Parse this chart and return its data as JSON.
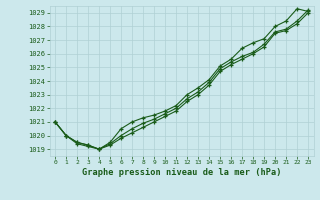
{
  "title": "Graphe pression niveau de la mer (hPa)",
  "bg_color": "#cce8ec",
  "grid_color": "#b0d0d4",
  "line_color": "#1a5c1a",
  "xlim": [
    -0.5,
    23.5
  ],
  "ylim": [
    1018.5,
    1029.5
  ],
  "yticks": [
    1019,
    1020,
    1021,
    1022,
    1023,
    1024,
    1025,
    1026,
    1027,
    1028,
    1029
  ],
  "xticks": [
    0,
    1,
    2,
    3,
    4,
    5,
    6,
    7,
    8,
    9,
    10,
    11,
    12,
    13,
    14,
    15,
    16,
    17,
    18,
    19,
    20,
    21,
    22,
    23
  ],
  "series": [
    [
      1021.0,
      1020.0,
      1019.5,
      1019.3,
      1019.0,
      1019.5,
      1020.5,
      1021.0,
      1021.3,
      1021.5,
      1021.8,
      1022.2,
      1023.0,
      1023.5,
      1024.1,
      1025.1,
      1025.6,
      1026.4,
      1026.8,
      1027.1,
      1028.0,
      1028.4,
      1029.3,
      1029.1
    ],
    [
      1021.0,
      1020.0,
      1019.5,
      1019.3,
      1019.0,
      1019.4,
      1020.0,
      1020.5,
      1020.9,
      1021.2,
      1021.6,
      1022.0,
      1022.7,
      1023.2,
      1023.9,
      1024.9,
      1025.4,
      1025.8,
      1026.1,
      1026.7,
      1027.6,
      1027.8,
      1028.4,
      1029.2
    ],
    [
      1021.0,
      1020.0,
      1019.4,
      1019.2,
      1019.0,
      1019.3,
      1019.8,
      1020.2,
      1020.6,
      1021.0,
      1021.4,
      1021.8,
      1022.5,
      1023.0,
      1023.7,
      1024.7,
      1025.2,
      1025.6,
      1026.0,
      1026.5,
      1027.5,
      1027.7,
      1028.2,
      1029.0
    ]
  ]
}
